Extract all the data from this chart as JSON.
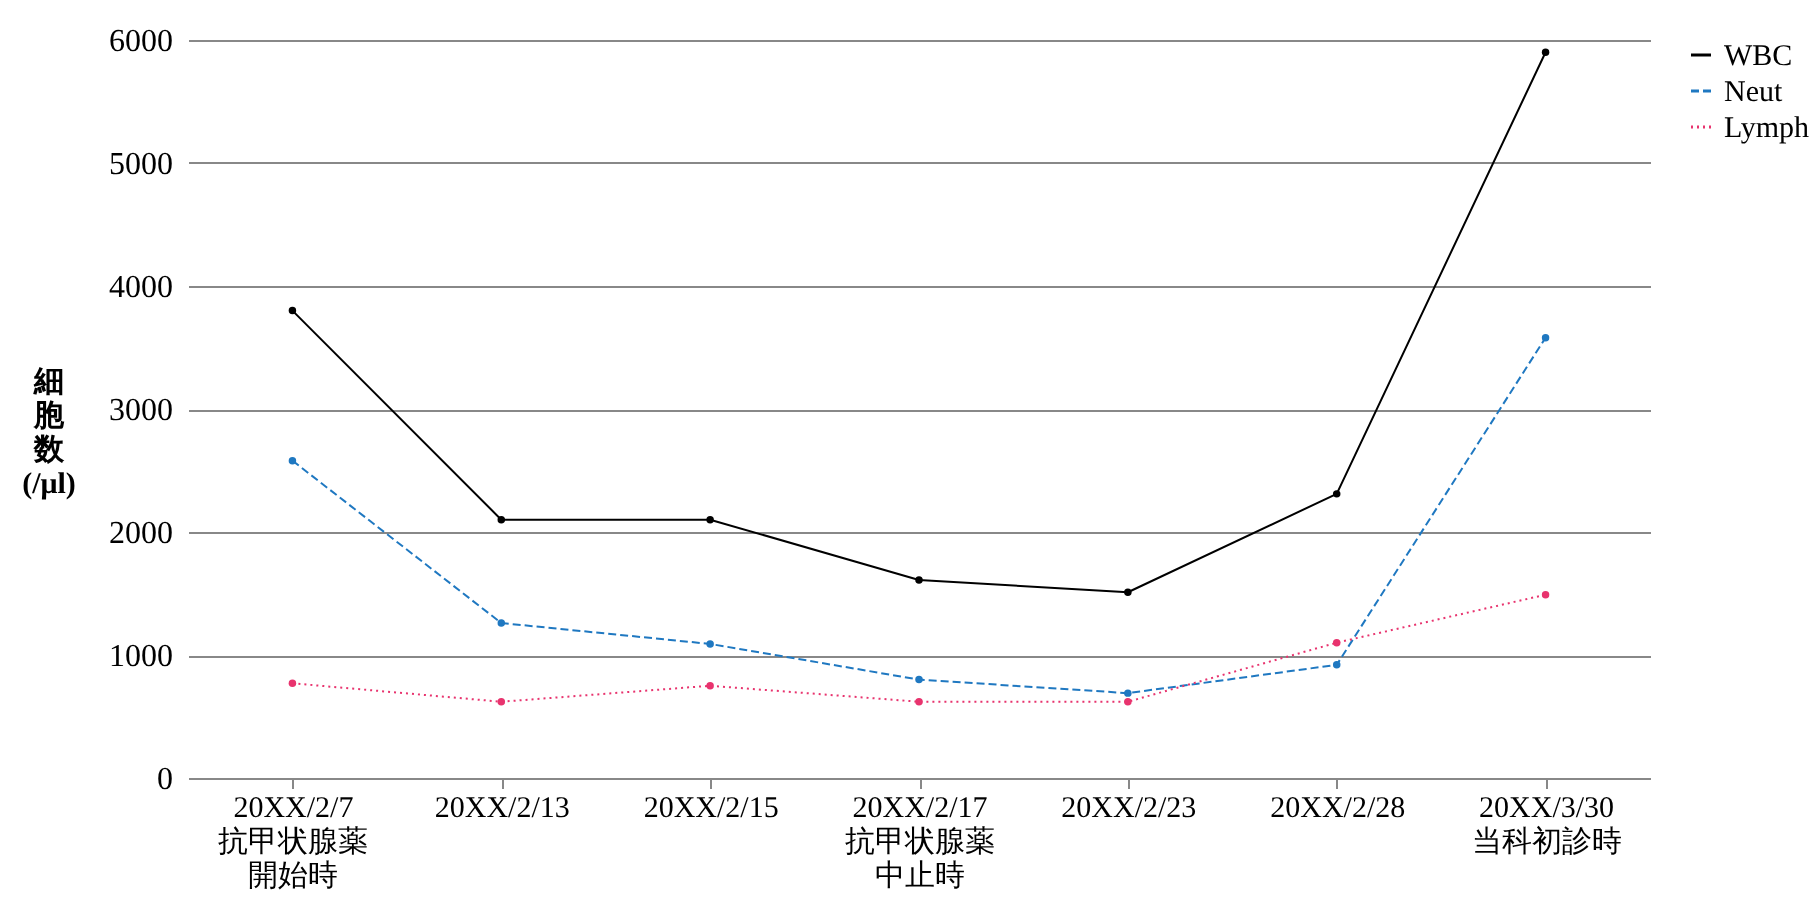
{
  "chart_data": {
    "type": "line",
    "categories": [
      "20XX/2/7\n抗甲状腺薬開始時",
      "20XX/2/13",
      "20XX/2/15",
      "20XX/2/17\n抗甲状腺薬中止時",
      "20XX/2/23",
      "20XX/2/28",
      "20XX/3/30\n当科初診時"
    ],
    "ylabel": "細胞数(/μl)",
    "series": [
      {
        "name": "WBC",
        "color": "#000000",
        "line_style": "solid",
        "values": [
          3800,
          2100,
          2100,
          1610,
          1510,
          2310,
          5900
        ]
      },
      {
        "name": "Neut",
        "color": "#1f78c1",
        "line_style": "dashed",
        "values": [
          2580,
          1260,
          1090,
          800,
          690,
          920,
          3580
        ]
      },
      {
        "name": "Lymph",
        "color": "#e8336e",
        "line_style": "dotted",
        "values": [
          770,
          620,
          750,
          620,
          620,
          1100,
          1490
        ]
      }
    ],
    "ylim": [
      0,
      6000
    ],
    "yticks": [
      0,
      1000,
      2000,
      3000,
      4000,
      5000,
      6000
    ],
    "grid": "y",
    "legend": "right",
    "marker": "circle"
  }
}
